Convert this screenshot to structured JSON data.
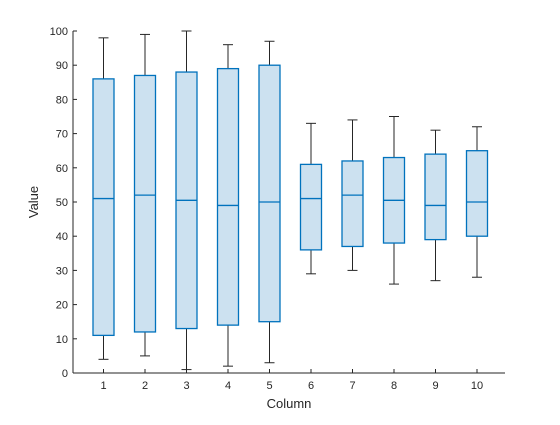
{
  "chart_data": {
    "type": "box",
    "title": "",
    "xlabel": "Column",
    "ylabel": "Value",
    "ylim": [
      0,
      100
    ],
    "yticks": [
      0,
      10,
      20,
      30,
      40,
      50,
      60,
      70,
      80,
      90,
      100
    ],
    "categories": [
      "1",
      "2",
      "3",
      "4",
      "5",
      "6",
      "7",
      "8",
      "9",
      "10"
    ],
    "boxes": [
      {
        "min": 4,
        "q1": 11,
        "median": 51,
        "q3": 86,
        "max": 98
      },
      {
        "min": 5,
        "q1": 12,
        "median": 52,
        "q3": 87,
        "max": 99
      },
      {
        "min": 1,
        "q1": 13,
        "median": 50.5,
        "q3": 88,
        "max": 100
      },
      {
        "min": 2,
        "q1": 14,
        "median": 49,
        "q3": 89,
        "max": 96
      },
      {
        "min": 3,
        "q1": 15,
        "median": 50,
        "q3": 90,
        "max": 97
      },
      {
        "min": 29,
        "q1": 36,
        "median": 51,
        "q3": 61,
        "max": 73
      },
      {
        "min": 30,
        "q1": 37,
        "median": 52,
        "q3": 62,
        "max": 74
      },
      {
        "min": 26,
        "q1": 38,
        "median": 50.5,
        "q3": 63,
        "max": 75
      },
      {
        "min": 27,
        "q1": 39,
        "median": 49,
        "q3": 64,
        "max": 71
      },
      {
        "min": 28,
        "q1": 40,
        "median": 50,
        "q3": 65,
        "max": 72
      }
    ],
    "box_face_color": "#cce1f0",
    "box_edge_color": "#0072bd",
    "whisker_color": "#262626",
    "grid": false,
    "legend": "none"
  }
}
